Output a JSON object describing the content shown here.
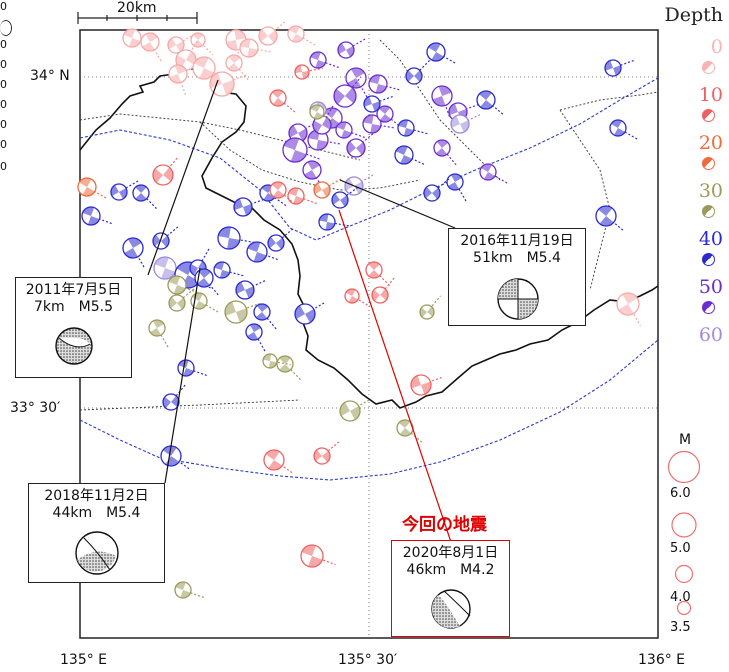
{
  "scale_bar": {
    "label": "20km"
  },
  "axes": {
    "lat_top": "34° N",
    "lat_mid": "33° 30′",
    "lon_left": "135° E",
    "lon_mid": "135° 30′",
    "lon_right": "136° E"
  },
  "depth_legend": {
    "title": "Depth",
    "levels": [
      {
        "label": "0",
        "color": "#f9b3b3"
      },
      {
        "label": "10",
        "color": "#f06060"
      },
      {
        "label": "20",
        "color": "#ef6a3c"
      },
      {
        "label": "30",
        "color": "#9a9a5a"
      },
      {
        "label": "40",
        "color": "#2a2ad0"
      },
      {
        "label": "50",
        "color": "#6a2cd0"
      },
      {
        "label": "60",
        "color": "#a58ad8"
      }
    ]
  },
  "magnitude_legend": {
    "title": "M",
    "labels": [
      "6.0",
      "5.0",
      "4.0",
      "3.5"
    ]
  },
  "left_edge_labels": [
    "0",
    "0",
    "0",
    "0",
    "0",
    "0",
    "0",
    "0"
  ],
  "callouts": {
    "c2011": {
      "date": "2011年7月5日",
      "info": "7km　M5.5"
    },
    "c2016": {
      "date": "2016年11月19日",
      "info": "51km　M5.4"
    },
    "c2018": {
      "date": "2018年11月2日",
      "info": "44km　M5.4"
    },
    "c2020": {
      "date": "2020年8月1日",
      "info": "46km　M4.2",
      "title": "今回の地震"
    }
  }
}
